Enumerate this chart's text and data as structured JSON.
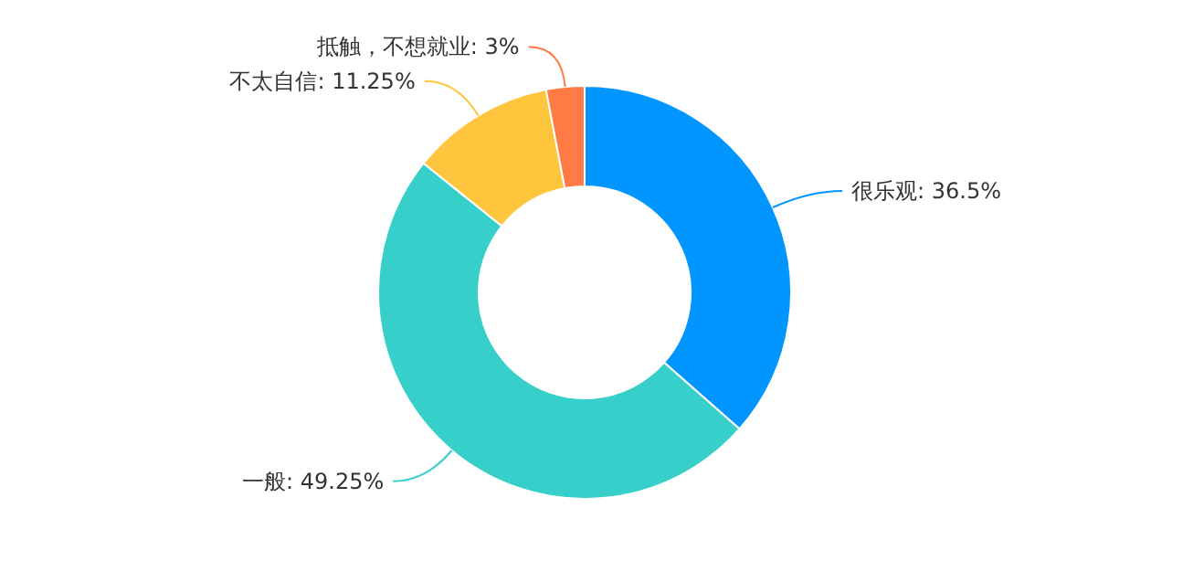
{
  "chart_data": {
    "type": "donut",
    "categories": [
      "很乐观",
      "一般",
      "不太自信",
      "抵触，不想就业"
    ],
    "values": [
      36.5,
      49.25,
      11.25,
      3
    ],
    "colors": [
      "#0095ff",
      "#36cfc9",
      "#ffc53d",
      "#ff7a45"
    ],
    "value_labels": [
      ": 36.5%",
      ": 49.25%",
      ": 11.25%",
      ": 3%"
    ]
  }
}
